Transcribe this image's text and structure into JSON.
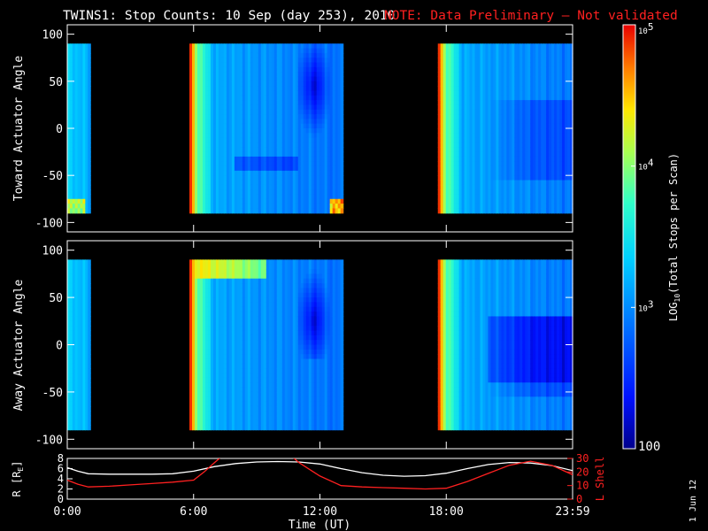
{
  "title": "TWINS1: Stop Counts: 10 Sep (day 253), 2010",
  "note": "NOTE: Data Preliminary – Not validated",
  "date_stamp": "1 Jun 12",
  "colors": {
    "background": "#000000",
    "axes": "#ffffff",
    "note": "#ff2020",
    "lshell": "#ff2020",
    "radius": "#ffffff"
  },
  "chart_data": [
    {
      "type": "heatmap",
      "ylabel": "Toward Actuator Angle",
      "ylim": [
        -110,
        110
      ],
      "yticks": [
        -100,
        -50,
        0,
        50,
        100
      ],
      "xlim_hours": [
        0,
        24
      ],
      "data_yrange": [
        -90,
        90
      ],
      "data_intervals_hours": [
        [
          0.0,
          1.1
        ],
        [
          5.8,
          13.1
        ],
        [
          17.6,
          24.0
        ]
      ],
      "colorscale": "log10",
      "notes_on_values": "log10 stop counts; ~3.0 background, ~4.5-5 at start of each interval, ~2.5 dip between 11-12.3 h near +60..0 deg"
    },
    {
      "type": "heatmap",
      "ylabel": "Away Actuator Angle",
      "ylim": [
        -110,
        110
      ],
      "yticks": [
        -100,
        -50,
        0,
        50,
        100
      ],
      "xlim_hours": [
        0,
        24
      ],
      "data_yrange": [
        -90,
        90
      ],
      "data_intervals_hours": [
        [
          0.0,
          1.1
        ],
        [
          5.8,
          13.1
        ],
        [
          17.6,
          24.0
        ]
      ],
      "colorscale": "log10"
    },
    {
      "type": "line",
      "xlabel": "Time (UT)",
      "ylabel_left": "R [Rₑ]",
      "ylabel_left_main": "R [R",
      "ylabel_left_sub": "E",
      "ylabel_left_end": "]",
      "ylabel_right": "L Shell",
      "ylim_left": [
        0,
        8
      ],
      "yticks_left": [
        0,
        2,
        4,
        6,
        8
      ],
      "ylim_right": [
        0,
        30
      ],
      "yticks_right": [
        0,
        10,
        20,
        30
      ],
      "xticks": [
        "0:00",
        "6:00",
        "12:00",
        "18:00",
        "23:59"
      ],
      "xtick_hours": [
        0,
        6,
        12,
        18,
        24
      ],
      "series": [
        {
          "name": "R",
          "x": [
            0,
            0.5,
            1,
            2,
            3,
            4,
            5,
            6,
            7,
            8,
            9,
            10,
            11,
            12,
            13,
            14,
            15,
            16,
            17,
            18,
            19,
            20,
            21,
            22,
            23,
            24
          ],
          "values": [
            6.2,
            5.5,
            5.0,
            4.9,
            4.9,
            4.9,
            5.0,
            5.5,
            6.4,
            7.0,
            7.3,
            7.4,
            7.3,
            6.9,
            6.0,
            5.2,
            4.7,
            4.5,
            4.6,
            5.1,
            6.0,
            6.8,
            7.2,
            7.1,
            6.6,
            5.6
          ]
        },
        {
          "name": "L Shell",
          "x": [
            0,
            0.5,
            1,
            2,
            3,
            4,
            5,
            6,
            6.5,
            7,
            7.3,
            10.7,
            11,
            11.5,
            12,
            13,
            14,
            15,
            16,
            17,
            18,
            19,
            20,
            21,
            22,
            23,
            24
          ],
          "values": [
            14,
            11,
            9,
            9.5,
            10.5,
            11.5,
            12.5,
            14,
            20,
            27,
            31,
            31,
            27,
            22,
            17,
            10,
            9,
            8.5,
            8,
            7.5,
            8,
            13,
            19,
            25,
            28,
            25,
            18
          ]
        }
      ]
    }
  ],
  "colorbar": {
    "label": "LOG10(Total Stops per Scan)",
    "label_main": "LOG",
    "label_sub": "10",
    "label_rest": "(Total Stops per Scan)",
    "ticks": [
      {
        "value": 5,
        "text_main": "10",
        "text_sup": "5"
      },
      {
        "value": 4,
        "text_main": "10",
        "text_sup": "4"
      },
      {
        "value": 3,
        "text_main": "10",
        "text_sup": "3"
      },
      {
        "value": 2,
        "text_main": "100",
        "text_sup": ""
      }
    ],
    "range": [
      2,
      5
    ]
  }
}
